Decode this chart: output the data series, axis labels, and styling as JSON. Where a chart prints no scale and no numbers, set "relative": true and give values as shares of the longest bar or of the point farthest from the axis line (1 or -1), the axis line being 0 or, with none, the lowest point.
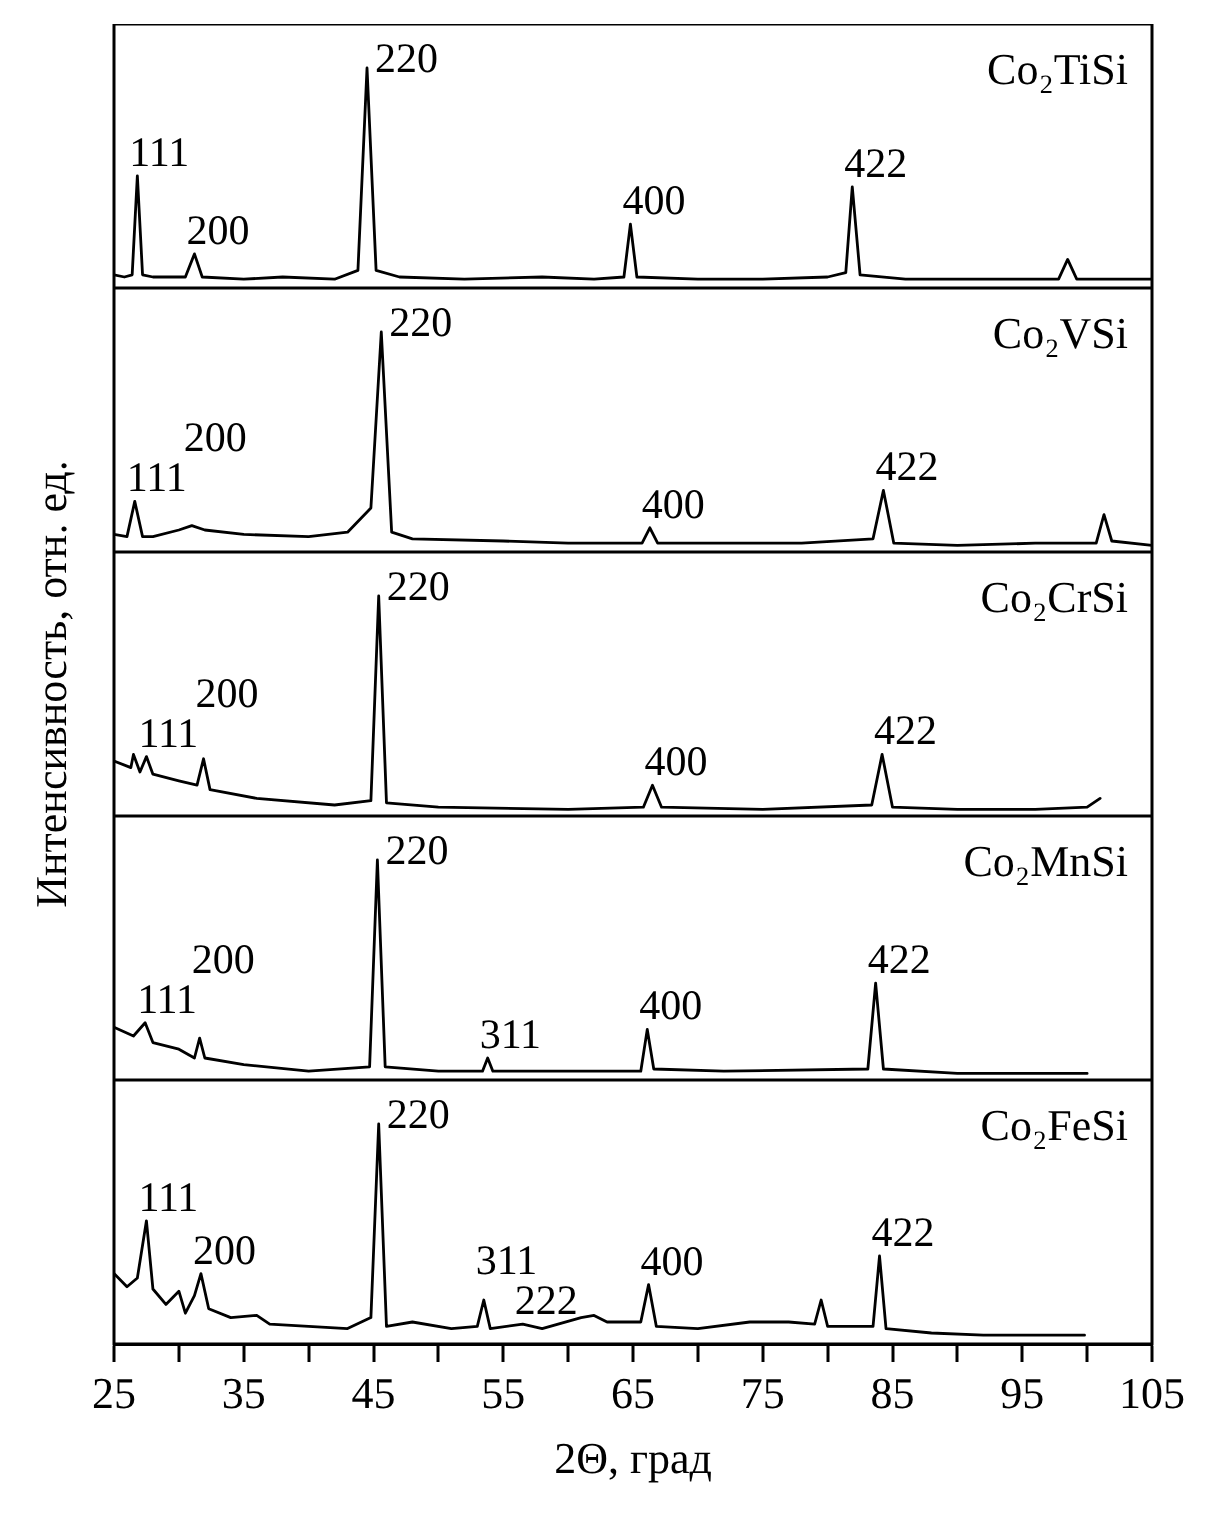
{
  "chart_data": [
    {
      "type": "line",
      "relative": true,
      "title": "Co₂TiSi",
      "xlim": [
        25,
        105
      ],
      "tick_labels": false,
      "series": [
        {
          "color": "#000000",
          "x": [
            25,
            25.8,
            26.4,
            26.8,
            27.2,
            28,
            30.5,
            31.2,
            31.8,
            35,
            38,
            42,
            43.8,
            44.5,
            45.2,
            47,
            52,
            58,
            62,
            64.3,
            64.8,
            65.3,
            70,
            75,
            80,
            81.4,
            81.9,
            82.5,
            86,
            92,
            97.8,
            98.5,
            99.2,
            105
          ],
          "values": [
            0.06,
            0.05,
            0.06,
            0.51,
            0.06,
            0.05,
            0.05,
            0.155,
            0.05,
            0.04,
            0.05,
            0.04,
            0.08,
            1,
            0.08,
            0.05,
            0.04,
            0.05,
            0.04,
            0.05,
            0.29,
            0.05,
            0.04,
            0.04,
            0.05,
            0.07,
            0.46,
            0.06,
            0.04,
            0.04,
            0.04,
            0.13,
            0.04,
            0.04
          ]
        }
      ],
      "annotations": [
        {
          "text": "111",
          "x": 26.8,
          "y": 0.51
        },
        {
          "text": "200",
          "x": 31.2,
          "y": 0.155
        },
        {
          "text": "220",
          "x": 44.5,
          "y": 1
        },
        {
          "text": "400",
          "x": 64.8,
          "y": 0.29
        },
        {
          "text": "422",
          "x": 81.9,
          "y": 0.46
        }
      ]
    },
    {
      "type": "line",
      "relative": true,
      "title": "Co₂VSi",
      "xlim": [
        25,
        105
      ],
      "tick_labels": false,
      "series": [
        {
          "color": "#000000",
          "x": [
            25,
            26,
            26.6,
            27.2,
            28,
            30,
            31,
            32,
            35,
            40,
            43,
            44.8,
            45.6,
            46.4,
            48,
            55,
            60,
            65.7,
            66.3,
            66.9,
            72,
            78,
            83.5,
            84.3,
            85.1,
            90,
            96,
            100.7,
            101.3,
            101.9,
            105
          ],
          "values": [
            0.08,
            0.07,
            0.23,
            0.07,
            0.07,
            0.1,
            0.12,
            0.1,
            0.08,
            0.07,
            0.09,
            0.2,
            1,
            0.09,
            0.06,
            0.05,
            0.04,
            0.04,
            0.11,
            0.04,
            0.04,
            0.04,
            0.06,
            0.28,
            0.04,
            0.03,
            0.04,
            0.04,
            0.17,
            0.05,
            0.03
          ]
        }
      ],
      "annotations": [
        {
          "text": "111",
          "x": 26.6,
          "y": 0.23
        },
        {
          "text": "200",
          "x": 31,
          "y": 0.12
        },
        {
          "text": "220",
          "x": 45.6,
          "y": 1
        },
        {
          "text": "400",
          "x": 66.3,
          "y": 0.11
        },
        {
          "text": "422",
          "x": 84.3,
          "y": 0.28
        }
      ]
    },
    {
      "type": "line",
      "relative": true,
      "title": "Co₂CrSi",
      "ylabel": "Интенсивность, отн. ед.",
      "xlim": [
        25,
        105
      ],
      "tick_labels": false,
      "series": [
        {
          "color": "#000000",
          "x": [
            25,
            26.3,
            26.5,
            27,
            27.5,
            28,
            30,
            31.4,
            31.9,
            32.4,
            36,
            42,
            44.8,
            45.4,
            46,
            50,
            60,
            65.8,
            66.5,
            67.2,
            75,
            83.4,
            84.2,
            85,
            90,
            96,
            100,
            101
          ],
          "values": [
            0.25,
            0.22,
            0.28,
            0.2,
            0.27,
            0.19,
            0.16,
            0.14,
            0.26,
            0.12,
            0.08,
            0.05,
            0.07,
            1,
            0.06,
            0.04,
            0.03,
            0.04,
            0.14,
            0.04,
            0.03,
            0.05,
            0.28,
            0.04,
            0.03,
            0.03,
            0.04,
            0.08
          ]
        }
      ],
      "annotations": [
        {
          "text": "111",
          "x": 27.5,
          "y": 0.27
        },
        {
          "text": "200",
          "x": 31.9,
          "y": 0.26
        },
        {
          "text": "220",
          "x": 45.4,
          "y": 1
        },
        {
          "text": "400",
          "x": 66.5,
          "y": 0.14
        },
        {
          "text": "422",
          "x": 84.2,
          "y": 0.28
        }
      ]
    },
    {
      "type": "line",
      "relative": true,
      "title": "Co₂MnSi",
      "xlim": [
        25,
        105
      ],
      "tick_labels": false,
      "series": [
        {
          "color": "#000000",
          "x": [
            25,
            26.5,
            27.4,
            28,
            30,
            31.2,
            31.6,
            32,
            35,
            40,
            44.7,
            45.3,
            45.9,
            50,
            53.4,
            53.8,
            54.2,
            60,
            65.6,
            66.1,
            66.6,
            72,
            83.1,
            83.7,
            84.3,
            90,
            95,
            100
          ],
          "values": [
            0.24,
            0.2,
            0.26,
            0.17,
            0.14,
            0.1,
            0.19,
            0.1,
            0.07,
            0.04,
            0.06,
            1,
            0.06,
            0.04,
            0.04,
            0.1,
            0.04,
            0.04,
            0.04,
            0.23,
            0.05,
            0.04,
            0.05,
            0.44,
            0.05,
            0.03,
            0.03,
            0.03
          ]
        }
      ],
      "annotations": [
        {
          "text": "111",
          "x": 27.4,
          "y": 0.26
        },
        {
          "text": "200",
          "x": 31.6,
          "y": 0.19
        },
        {
          "text": "220",
          "x": 45.3,
          "y": 1
        },
        {
          "text": "311",
          "x": 53.8,
          "y": 0.1
        },
        {
          "text": "400",
          "x": 66.1,
          "y": 0.23
        },
        {
          "text": "422",
          "x": 83.7,
          "y": 0.44
        }
      ]
    },
    {
      "type": "line",
      "relative": true,
      "title": "Co₂FeSi",
      "xlabel": "2Θ, град",
      "xlim": [
        25,
        105
      ],
      "tick_labels": "x",
      "xticks": [
        25,
        {
          "value": 30,
          "label": null
        },
        35,
        {
          "value": 40,
          "label": null
        },
        45,
        {
          "value": 50,
          "label": null
        },
        55,
        {
          "value": 60,
          "label": null
        },
        65,
        {
          "value": 70,
          "label": null
        },
        75,
        {
          "value": 80,
          "label": null
        },
        85,
        {
          "value": 90,
          "label": null
        },
        95,
        {
          "value": 100,
          "label": null
        },
        105
      ],
      "series": [
        {
          "color": "#000000",
          "x": [
            25,
            26,
            26.8,
            27.5,
            28,
            29,
            30,
            30.5,
            31.2,
            31.7,
            32.3,
            34,
            36,
            37,
            40,
            43,
            44.8,
            45.4,
            46,
            48,
            51,
            53,
            53.5,
            54,
            56.5,
            58,
            61,
            62,
            63,
            65.6,
            66.2,
            66.8,
            70,
            74,
            77,
            79,
            79.5,
            80,
            82,
            83.5,
            84,
            84.5,
            88,
            92,
            96,
            99.8
          ],
          "values": [
            0.32,
            0.26,
            0.3,
            0.56,
            0.25,
            0.18,
            0.24,
            0.14,
            0.22,
            0.32,
            0.16,
            0.12,
            0.13,
            0.09,
            0.08,
            0.07,
            0.12,
            1,
            0.08,
            0.1,
            0.07,
            0.08,
            0.2,
            0.07,
            0.09,
            0.07,
            0.12,
            0.13,
            0.1,
            0.1,
            0.27,
            0.08,
            0.07,
            0.1,
            0.1,
            0.09,
            0.2,
            0.08,
            0.08,
            0.08,
            0.4,
            0.07,
            0.05,
            0.04,
            0.04,
            0.04
          ]
        }
      ],
      "annotations": [
        {
          "text": "111",
          "x": 27.5,
          "y": 0.56
        },
        {
          "text": "200",
          "x": 31.7,
          "y": 0.32
        },
        {
          "text": "220",
          "x": 45.4,
          "y": 1
        },
        {
          "text": "222",
          "x": 56.5,
          "y": 0.09
        },
        {
          "text": "311",
          "x": 53.5,
          "y": 0.2
        },
        {
          "text": "400",
          "x": 66.2,
          "y": 0.27
        },
        {
          "text": "422",
          "x": 84,
          "y": 0.4
        }
      ]
    }
  ]
}
